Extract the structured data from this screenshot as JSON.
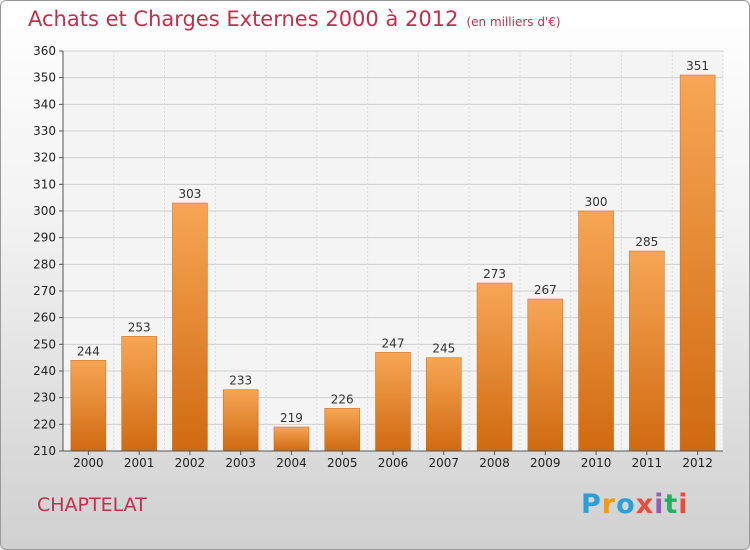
{
  "header": {
    "title": "Achats et Charges Externes 2000 à 2012",
    "subtitle": "(en milliers d'€)"
  },
  "footer": {
    "commune": "CHAPTELAT",
    "logo_letters": [
      "P",
      "r",
      "o",
      "x",
      "i",
      "t",
      "i"
    ],
    "logo_colors": [
      "#2a9fd8",
      "#f39c12",
      "#2a9fd8",
      "#e74c3c",
      "#9b59b6",
      "#27ae60",
      "#e74c3c"
    ]
  },
  "chart_data": {
    "type": "bar",
    "title": "Achats et Charges Externes 2000 à 2012",
    "categories": [
      "2000",
      "2001",
      "2002",
      "2003",
      "2004",
      "2005",
      "2006",
      "2007",
      "2008",
      "2009",
      "2010",
      "2011",
      "2012"
    ],
    "values": [
      244,
      253,
      303,
      233,
      219,
      226,
      247,
      245,
      273,
      267,
      300,
      285,
      351
    ],
    "ylim": [
      210,
      360
    ],
    "yticks": [
      210,
      220,
      230,
      240,
      250,
      260,
      270,
      280,
      290,
      300,
      310,
      320,
      330,
      340,
      350,
      360
    ],
    "grid": true,
    "bar_color_top": "#f7a655",
    "bar_color_bottom": "#d06a10"
  }
}
